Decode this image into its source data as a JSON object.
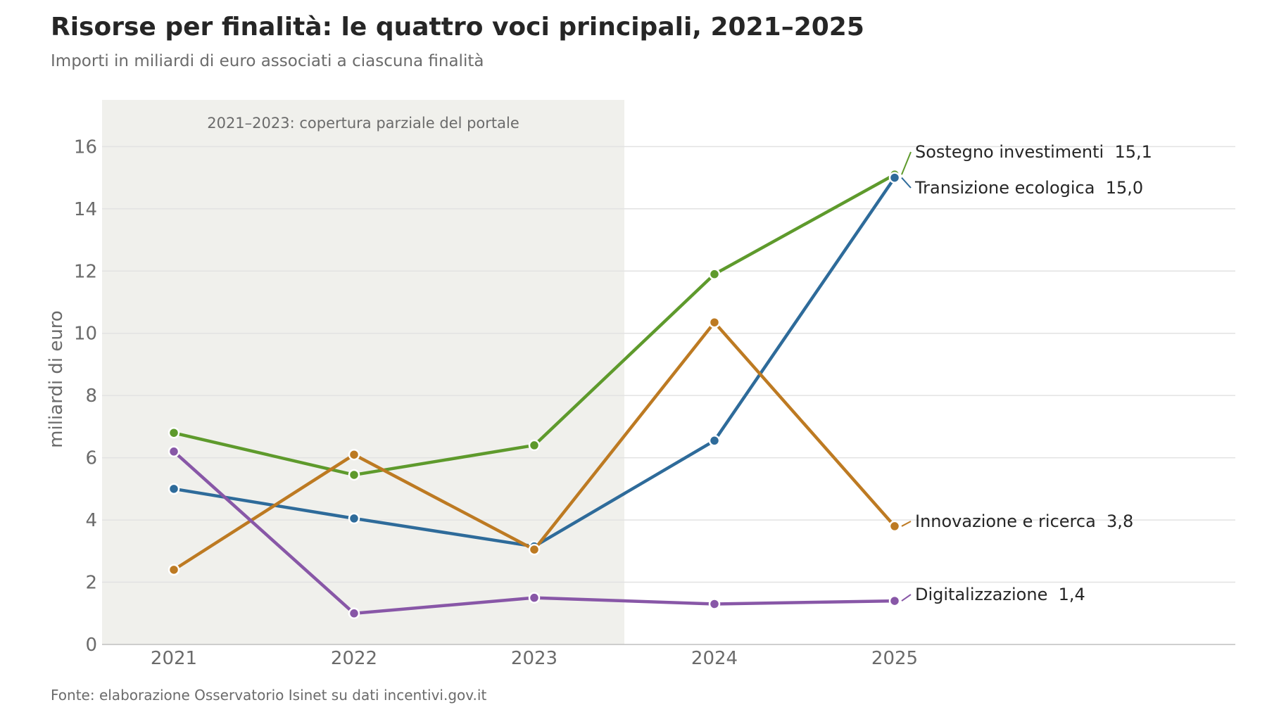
{
  "title": "Risorse per finalità: le quattro voci principali, 2021–2025",
  "subtitle": "Importi in miliardi di euro associati a ciascuna finalità",
  "footer": "Fonte: elaborazione Osservatorio Isinet su dati incentivi.gov.it",
  "chart_data": {
    "type": "line",
    "x": [
      "2021",
      "2022",
      "2023",
      "2024",
      "2025"
    ],
    "ylabel": "miliardi di euro",
    "ylim": [
      0,
      17.5
    ],
    "yticks": [
      0,
      2,
      4,
      6,
      8,
      10,
      12,
      14,
      16
    ],
    "grid": true,
    "shaded_period": {
      "from": "2021",
      "to": "2023",
      "label": "2021–2023: copertura parziale del portale"
    },
    "series": [
      {
        "name": "Sostegno investimenti",
        "end_label": "15,1",
        "color": "#5e9a2c",
        "values": [
          6.8,
          5.45,
          6.4,
          11.9,
          15.1
        ]
      },
      {
        "name": "Transizione ecologica",
        "end_label": "15,0",
        "color": "#2e6b9a",
        "values": [
          5.0,
          4.05,
          3.15,
          6.55,
          15.0
        ]
      },
      {
        "name": "Innovazione e ricerca",
        "end_label": "3,8",
        "color": "#bd7a22",
        "values": [
          2.4,
          6.1,
          3.05,
          10.35,
          3.8
        ]
      },
      {
        "name": "Digitalizzazione",
        "end_label": "1,4",
        "color": "#8857a7",
        "values": [
          6.2,
          1.0,
          1.5,
          1.3,
          1.4
        ]
      }
    ]
  }
}
